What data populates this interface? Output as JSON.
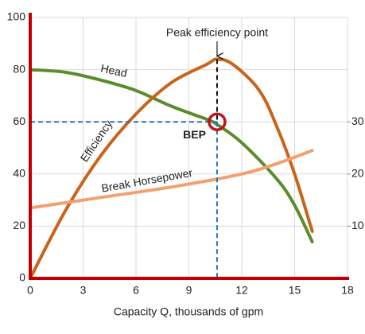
{
  "chart_data": {
    "type": "line",
    "xlabel": "Capacity Q, thousands of gpm",
    "xlim": [
      0,
      18
    ],
    "xticks": [
      0,
      3,
      6,
      9,
      12,
      15,
      18
    ],
    "ylim": [
      0,
      100
    ],
    "yticks": [
      0,
      20,
      40,
      60,
      80,
      100
    ],
    "y2lim": [
      0,
      50
    ],
    "y2ticks": [
      10,
      20,
      30
    ],
    "grid": true,
    "series": [
      {
        "name": "Head",
        "color": "#5b8c2a",
        "x": [
          0,
          2,
          4,
          6,
          8,
          10,
          10.6,
          12,
          14,
          15,
          16
        ],
        "values": [
          80,
          79,
          76,
          72,
          66,
          61,
          59,
          52,
          38,
          28,
          14
        ]
      },
      {
        "name": "Efficiency",
        "color": "#c8641c",
        "x": [
          0,
          2,
          4,
          6,
          8,
          10,
          10.6,
          11.5,
          13,
          14,
          15,
          16
        ],
        "values": [
          0,
          26,
          47,
          63,
          75,
          82,
          84,
          82,
          72,
          58,
          40,
          18
        ]
      },
      {
        "name": "Break Horsepower",
        "color": "#f2a070",
        "axis": "y2",
        "x": [
          0,
          4,
          8,
          12,
          14,
          16
        ],
        "values": [
          13.5,
          15.5,
          17.5,
          20,
          22,
          24.5
        ]
      }
    ],
    "bep": {
      "label": "BEP",
      "x": 10.6,
      "y": 60
    },
    "peak": {
      "label": "Peak efficiency point",
      "x": 10.6,
      "y": 84
    }
  }
}
